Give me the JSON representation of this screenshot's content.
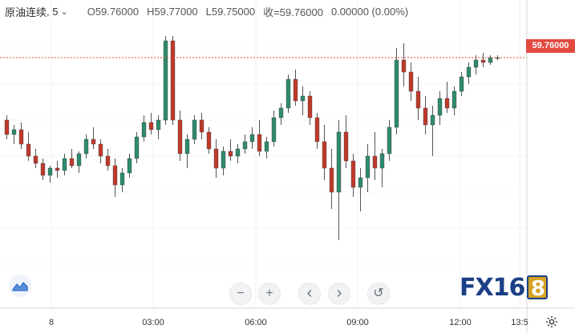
{
  "legend": {
    "symbol": "原油连续",
    "interval": "5",
    "open": "O59.76000",
    "high": "H59.77000",
    "low": "L59.75000",
    "close": "收=59.76000",
    "change": "0.00000 (0.00%)"
  },
  "price_badge": "59.76000",
  "toolbar": {
    "zoom_out": "−",
    "zoom_in": "+",
    "scroll_left": "‹",
    "scroll_right": "›",
    "reset": "↺"
  },
  "logo": {
    "text": "FX16",
    "box": "8"
  },
  "colors": {
    "up": "#26a69a",
    "up_fill": "#2e8b6e",
    "down": "#c0392b",
    "badge": "#e2493f",
    "price_line": "#e2493f"
  },
  "icons": {
    "chart_type": "chart-area-icon",
    "settings": "gear-icon"
  },
  "chart_data": {
    "type": "candlestick",
    "x_tick_labels": [
      "8",
      "03:00",
      "06:00",
      "09:00",
      "12:00",
      "13:5"
    ],
    "last_price": 59.76,
    "y_range": [
      58.9,
      59.9
    ],
    "candles": [
      [
        59.5,
        59.52,
        59.42,
        59.44
      ],
      [
        59.44,
        59.48,
        59.4,
        59.46
      ],
      [
        59.46,
        59.49,
        59.38,
        59.4
      ],
      [
        59.4,
        59.45,
        59.33,
        59.35
      ],
      [
        59.35,
        59.38,
        59.3,
        59.32
      ],
      [
        59.32,
        59.34,
        59.25,
        59.27
      ],
      [
        59.27,
        59.31,
        59.24,
        59.3
      ],
      [
        59.3,
        59.33,
        59.26,
        59.29
      ],
      [
        59.29,
        59.36,
        59.27,
        59.34
      ],
      [
        59.34,
        59.38,
        59.3,
        59.31
      ],
      [
        59.31,
        59.37,
        59.28,
        59.36
      ],
      [
        59.36,
        59.44,
        59.34,
        59.42
      ],
      [
        59.42,
        59.47,
        59.38,
        59.4
      ],
      [
        59.4,
        59.42,
        59.32,
        59.35
      ],
      [
        59.35,
        59.38,
        59.29,
        59.31
      ],
      [
        59.31,
        59.34,
        59.18,
        59.23
      ],
      [
        59.23,
        59.3,
        59.2,
        59.28
      ],
      [
        59.28,
        59.36,
        59.26,
        59.34
      ],
      [
        59.34,
        59.45,
        59.32,
        59.43
      ],
      [
        59.43,
        59.52,
        59.41,
        59.49
      ],
      [
        59.49,
        59.53,
        59.44,
        59.46
      ],
      [
        59.46,
        59.52,
        59.42,
        59.5
      ],
      [
        59.5,
        59.85,
        59.48,
        59.83
      ],
      [
        59.83,
        59.85,
        59.48,
        59.5
      ],
      [
        59.5,
        59.54,
        59.33,
        59.36
      ],
      [
        59.36,
        59.44,
        59.3,
        59.42
      ],
      [
        59.42,
        59.52,
        59.4,
        59.5
      ],
      [
        59.5,
        59.53,
        59.42,
        59.45
      ],
      [
        59.45,
        59.47,
        59.36,
        59.38
      ],
      [
        59.38,
        59.42,
        59.26,
        59.3
      ],
      [
        59.3,
        59.39,
        59.27,
        59.37
      ],
      [
        59.37,
        59.42,
        59.33,
        59.35
      ],
      [
        59.35,
        59.4,
        59.32,
        59.38
      ],
      [
        59.38,
        59.44,
        59.36,
        59.41
      ],
      [
        59.41,
        59.47,
        59.38,
        59.44
      ],
      [
        59.44,
        59.5,
        59.35,
        59.37
      ],
      [
        59.37,
        59.43,
        59.34,
        59.41
      ],
      [
        59.41,
        59.54,
        59.39,
        59.51
      ],
      [
        59.51,
        59.57,
        59.48,
        59.55
      ],
      [
        59.55,
        59.69,
        59.53,
        59.67
      ],
      [
        59.67,
        59.71,
        59.56,
        59.58
      ],
      [
        59.58,
        59.64,
        59.52,
        59.6
      ],
      [
        59.6,
        59.62,
        59.48,
        59.51
      ],
      [
        59.51,
        59.53,
        59.38,
        59.41
      ],
      [
        59.41,
        59.48,
        59.25,
        59.3
      ],
      [
        59.3,
        59.38,
        59.13,
        59.2
      ],
      [
        59.2,
        59.5,
        59.0,
        59.45
      ],
      [
        59.45,
        59.52,
        59.3,
        59.33
      ],
      [
        59.33,
        59.36,
        59.18,
        59.22
      ],
      [
        59.22,
        59.3,
        59.12,
        59.26
      ],
      [
        59.26,
        59.4,
        59.2,
        59.35
      ],
      [
        59.35,
        59.45,
        59.25,
        59.3
      ],
      [
        59.3,
        59.38,
        59.22,
        59.36
      ],
      [
        59.36,
        59.5,
        59.33,
        59.47
      ],
      [
        59.47,
        59.8,
        59.44,
        59.75
      ],
      [
        59.75,
        59.82,
        59.64,
        59.7
      ],
      [
        59.7,
        59.74,
        59.58,
        59.62
      ],
      [
        59.62,
        59.68,
        59.5,
        59.55
      ],
      [
        59.55,
        59.6,
        59.44,
        59.48
      ],
      [
        59.48,
        59.56,
        59.35,
        59.52
      ],
      [
        59.52,
        59.62,
        59.48,
        59.59
      ],
      [
        59.59,
        59.66,
        59.53,
        59.55
      ],
      [
        59.55,
        59.64,
        59.52,
        59.62
      ],
      [
        59.62,
        59.7,
        59.6,
        59.68
      ],
      [
        59.68,
        59.74,
        59.65,
        59.72
      ],
      [
        59.72,
        59.77,
        59.69,
        59.75
      ],
      [
        59.75,
        59.78,
        59.72,
        59.74
      ],
      [
        59.74,
        59.77,
        59.73,
        59.76
      ],
      [
        59.76,
        59.77,
        59.75,
        59.76
      ]
    ]
  }
}
